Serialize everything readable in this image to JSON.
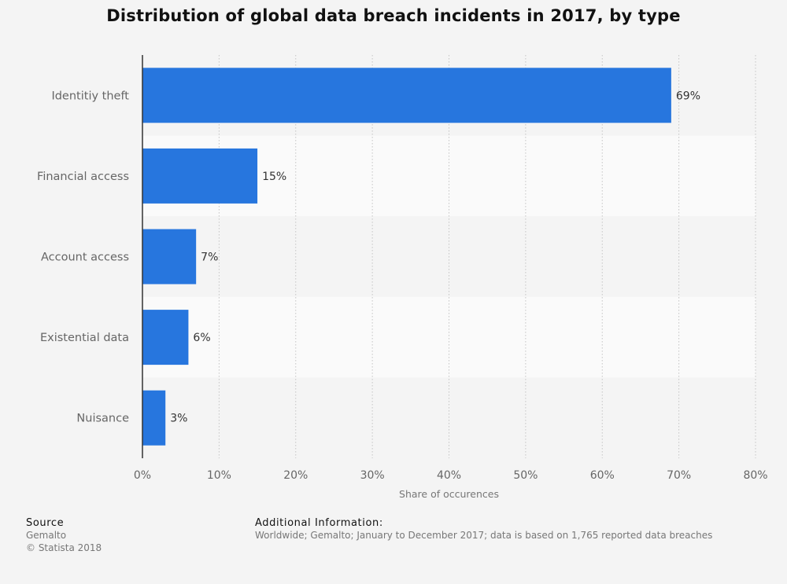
{
  "chart_data": {
    "type": "bar",
    "orientation": "horizontal",
    "title": "Distribution of global data breach incidents in 2017, by type",
    "categories": [
      "Identitiy theft",
      "Financial access",
      "Account access",
      "Existential data",
      "Nuisance"
    ],
    "values": [
      69,
      15,
      7,
      6,
      3
    ],
    "value_labels": [
      "69%",
      "15%",
      "7%",
      "6%",
      "3%"
    ],
    "xlabel": "Share of occurences",
    "ylabel": "",
    "xlim": [
      0,
      80
    ],
    "x_ticks": [
      0,
      10,
      20,
      30,
      40,
      50,
      60,
      70,
      80
    ],
    "x_tick_labels": [
      "0%",
      "10%",
      "20%",
      "30%",
      "40%",
      "50%",
      "60%",
      "70%",
      "80%"
    ],
    "grid": "vertical-dotted",
    "bar_color": "#2776de"
  },
  "footer": {
    "source_heading": "Source",
    "source_lines": [
      "Gemalto",
      "© Statista 2018"
    ],
    "additional_heading": "Additional Information:",
    "additional_text": "Worldwide; Gemalto; January to December 2017; data is based on 1,765 reported data breaches"
  }
}
